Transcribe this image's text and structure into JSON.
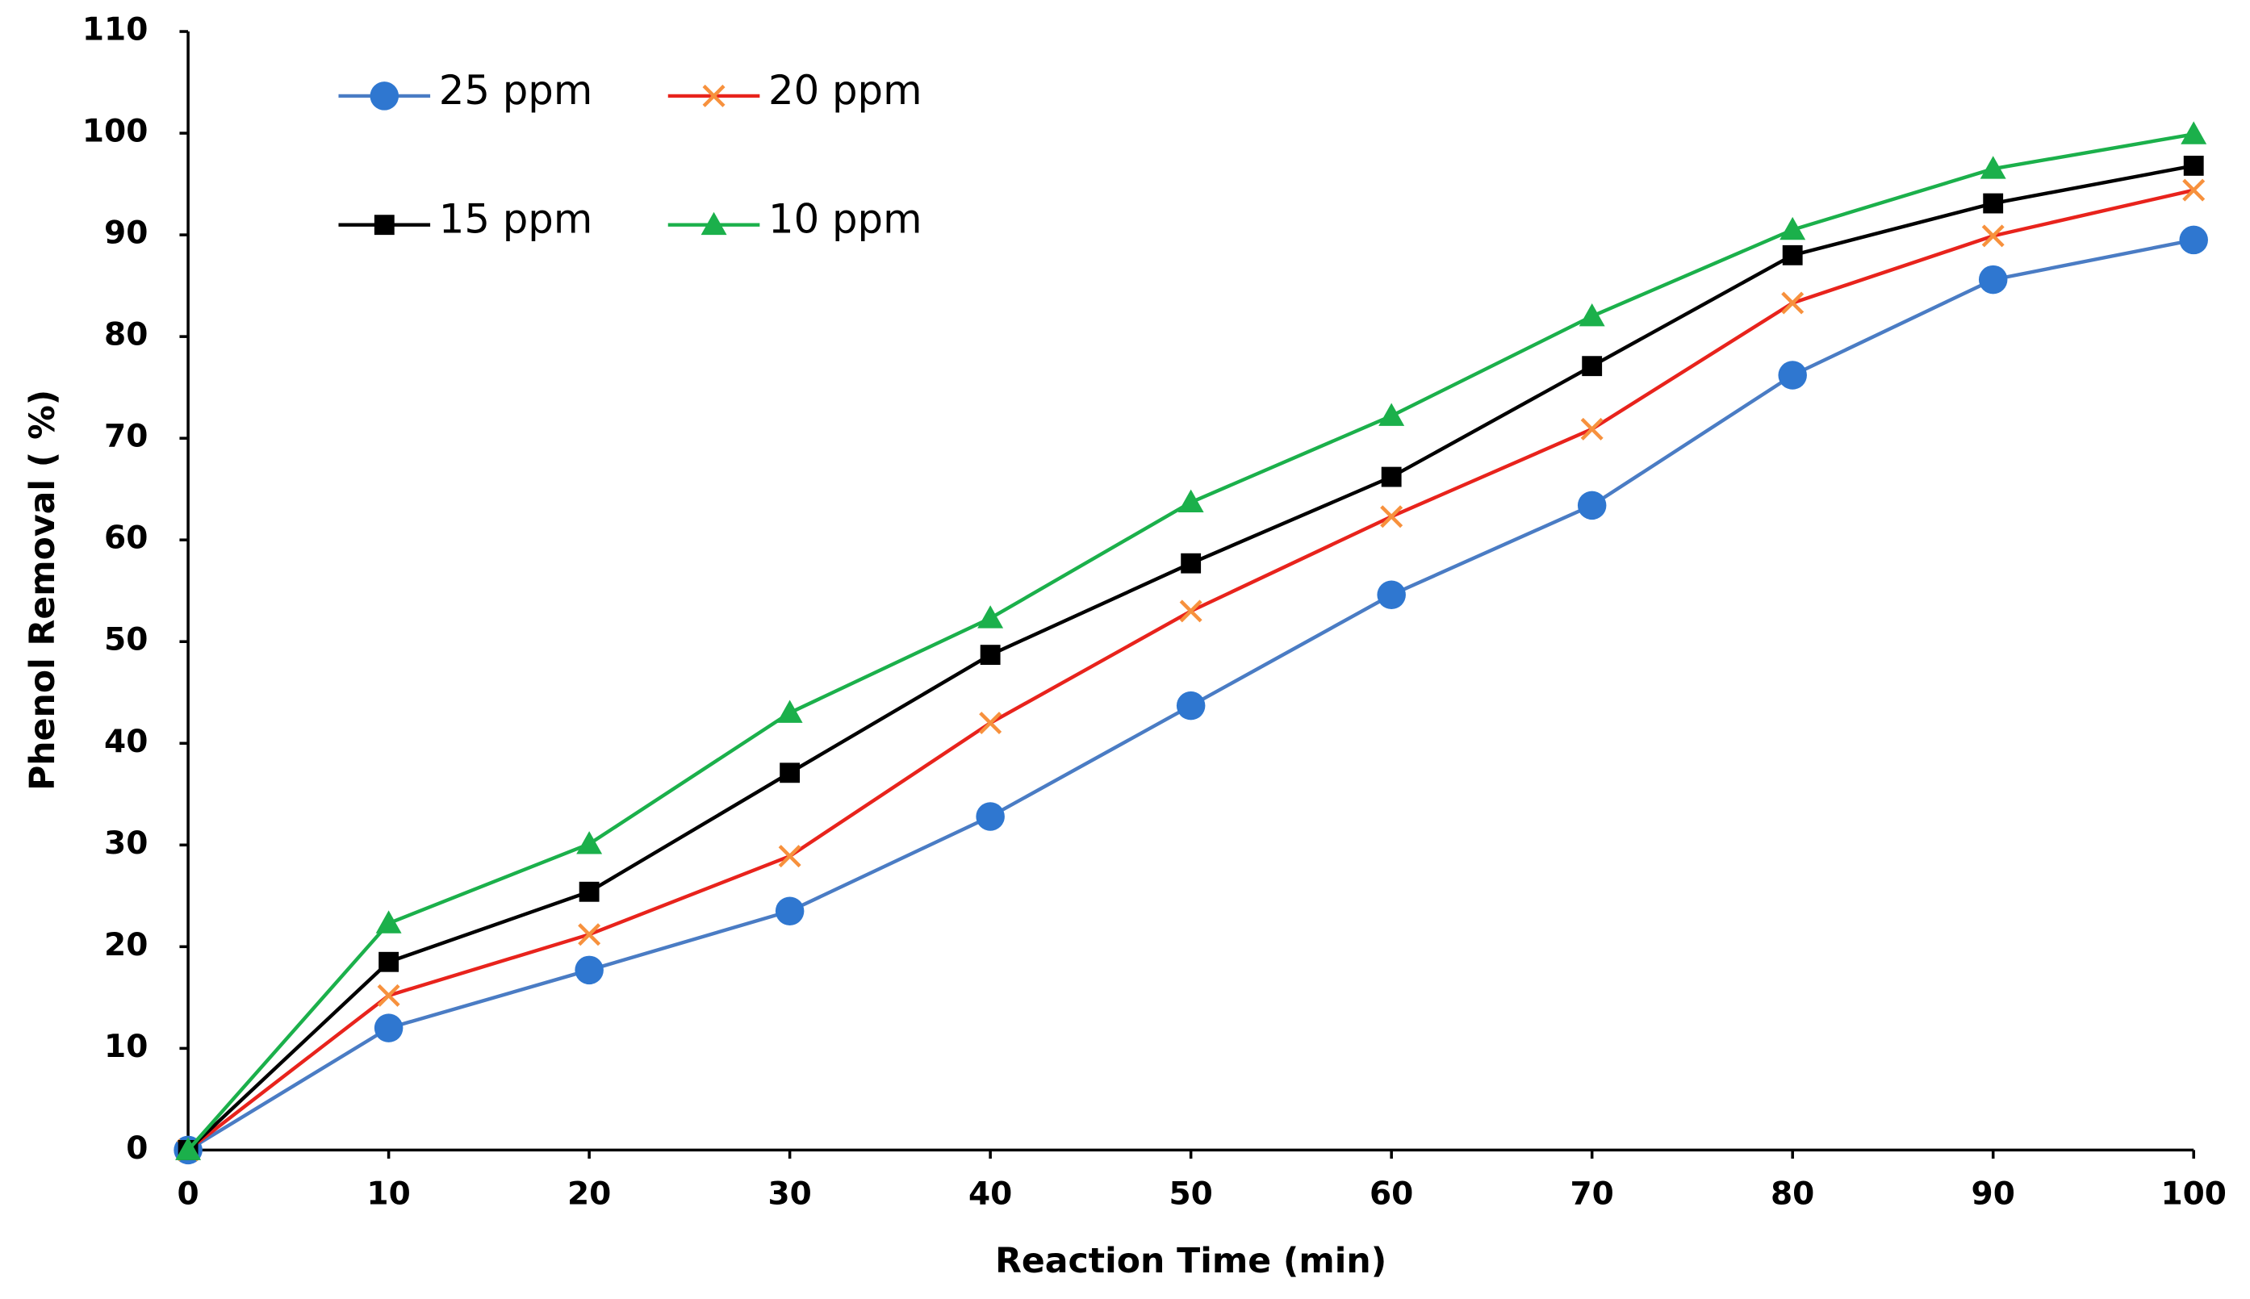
{
  "chart_data": {
    "type": "line",
    "x_label": "Reaction Time (min)",
    "y_label": "Phenol Removal ( %)",
    "x": [
      0,
      10,
      20,
      30,
      40,
      50,
      60,
      70,
      80,
      90,
      100
    ],
    "xlim": [
      0,
      100
    ],
    "xticks": [
      0,
      10,
      20,
      30,
      40,
      50,
      60,
      70,
      80,
      90,
      100
    ],
    "ylim": [
      0,
      110
    ],
    "yticks": [
      0,
      10,
      20,
      30,
      40,
      50,
      60,
      70,
      80,
      90,
      100,
      110
    ],
    "grid": false,
    "legend": "top-left",
    "series": [
      {
        "name": "25 ppm",
        "color": "#4a7cc4",
        "marker_color": "#2f77d0",
        "marker": "circle",
        "values": [
          0,
          12,
          17.7,
          23.5,
          32.8,
          43.7,
          54.6,
          63.4,
          76.2,
          85.6,
          89.5
        ]
      },
      {
        "name": "20 ppm",
        "color": "#e8231c",
        "marker_color": "#f7913d",
        "marker": "x",
        "values": [
          0,
          15.2,
          21.2,
          28.9,
          42,
          53,
          62.3,
          70.9,
          83.3,
          89.9,
          94.4
        ]
      },
      {
        "name": "15 ppm",
        "color": "#000000",
        "marker_color": "#000000",
        "marker": "square",
        "values": [
          0,
          18.5,
          25.4,
          37.1,
          48.7,
          57.7,
          66.2,
          77.1,
          88,
          93.1,
          96.8
        ]
      },
      {
        "name": "10 ppm",
        "color": "#1bb04b",
        "marker_color": "#1bb04b",
        "marker": "triangle",
        "values": [
          0,
          22.3,
          30.1,
          43,
          52.3,
          63.7,
          72.2,
          82,
          90.5,
          96.5,
          99.9
        ]
      }
    ]
  }
}
